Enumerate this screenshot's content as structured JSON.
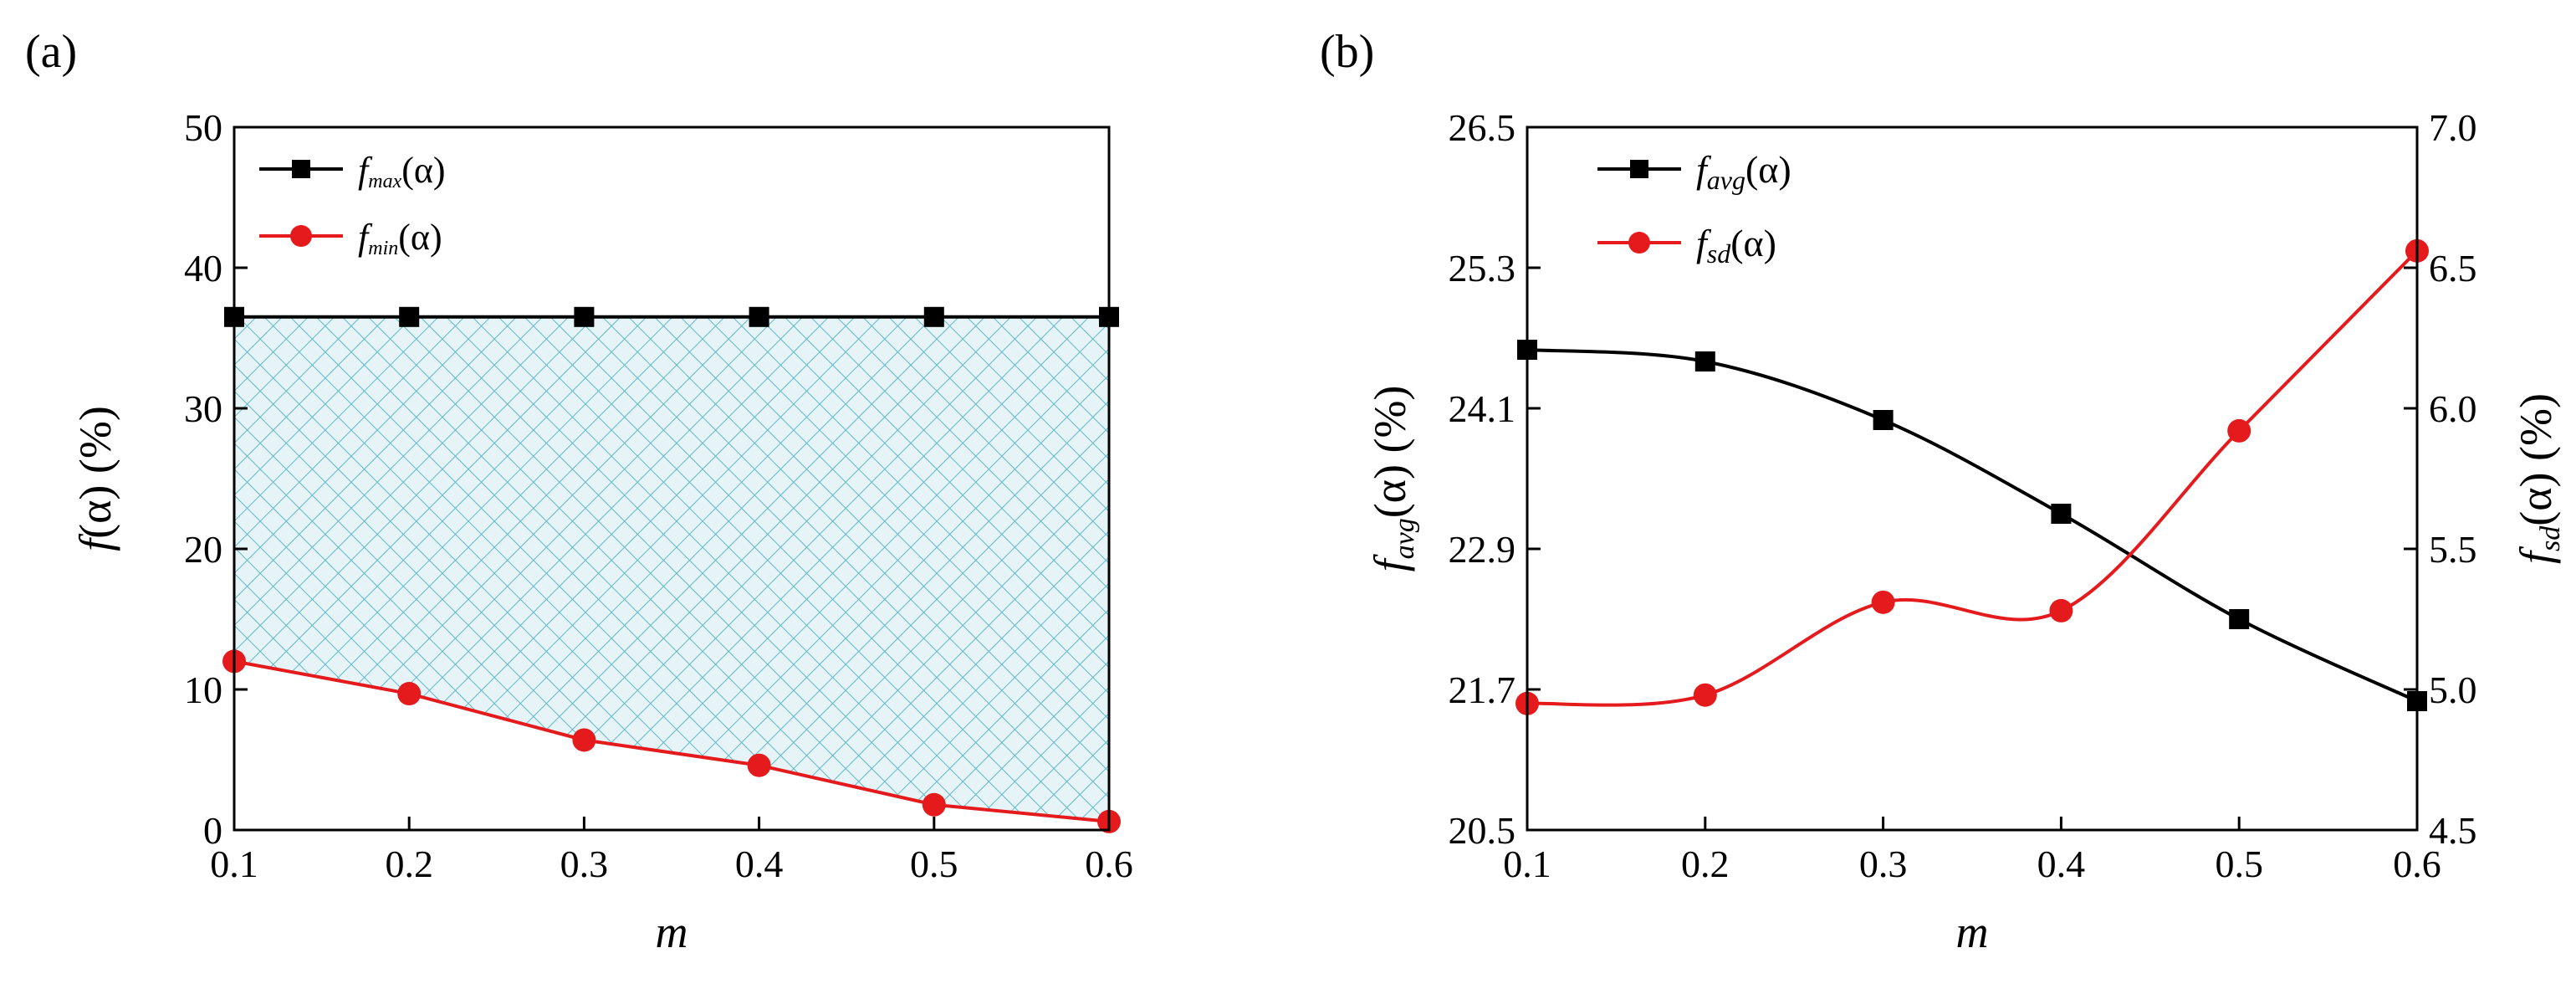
{
  "chart_data": [
    {
      "type": "line",
      "panel_label": "(a)",
      "xlabel": "m",
      "ylabel": {
        "italic": "f",
        "rest": "(α) (%)"
      },
      "xlim": [
        0.1,
        0.6
      ],
      "ylim": [
        0,
        50
      ],
      "x_ticks": [
        "0.1",
        "0.2",
        "0.3",
        "0.4",
        "0.5",
        "0.6"
      ],
      "y_ticks": [
        "0",
        "10",
        "20",
        "30",
        "40",
        "50"
      ],
      "x": [
        0.1,
        0.2,
        0.3,
        0.4,
        0.5,
        0.6
      ],
      "fill_between": [
        "f_max",
        "f_min"
      ],
      "legend_position": "top-left",
      "series": [
        {
          "id": "f_max",
          "name": {
            "f": "f",
            "sub": "max",
            "rest": "(α)"
          },
          "color": "#000000",
          "marker": "square",
          "values": [
            36.5,
            36.5,
            36.5,
            36.5,
            36.5,
            36.5
          ]
        },
        {
          "id": "f_min",
          "name": {
            "f": "f",
            "sub": "min",
            "rest": "(α)"
          },
          "color": "#e41a1c",
          "marker": "circle",
          "values": [
            12.0,
            9.7,
            6.4,
            4.6,
            1.8,
            0.6
          ]
        }
      ]
    },
    {
      "type": "line",
      "panel_label": "(b)",
      "xlabel": "m",
      "ylabel_left": {
        "f": "f",
        "sub": "avg",
        "rest": "(α) (%)"
      },
      "ylabel_right": {
        "f": "f",
        "sub": "sd",
        "rest": "(α) (%)"
      },
      "xlim": [
        0.1,
        0.6
      ],
      "ylim_left": [
        20.5,
        26.5
      ],
      "ylim_right": [
        4.5,
        7.0
      ],
      "x_ticks": [
        "0.1",
        "0.2",
        "0.3",
        "0.4",
        "0.5",
        "0.6"
      ],
      "y_ticks_left": [
        "20.5",
        "21.7",
        "22.9",
        "24.1",
        "25.3",
        "26.5"
      ],
      "y_ticks_right": [
        "4.5",
        "5.0",
        "5.5",
        "6.0",
        "6.5",
        "7.0"
      ],
      "x": [
        0.1,
        0.2,
        0.3,
        0.4,
        0.5,
        0.6
      ],
      "legend_position": "top-left",
      "series": [
        {
          "id": "f_avg",
          "name": {
            "f": "f",
            "sub": "avg",
            "rest": "(α)"
          },
          "axis": "left",
          "color": "#000000",
          "marker": "square",
          "values": [
            24.6,
            24.5,
            24.0,
            23.2,
            22.3,
            21.6
          ]
        },
        {
          "id": "f_sd",
          "name": {
            "f": "f",
            "sub": "sd",
            "rest": "(α)"
          },
          "axis": "right",
          "color": "#e41a1c",
          "marker": "circle",
          "values": [
            4.95,
            4.98,
            5.31,
            5.28,
            5.92,
            6.56
          ]
        }
      ]
    }
  ]
}
